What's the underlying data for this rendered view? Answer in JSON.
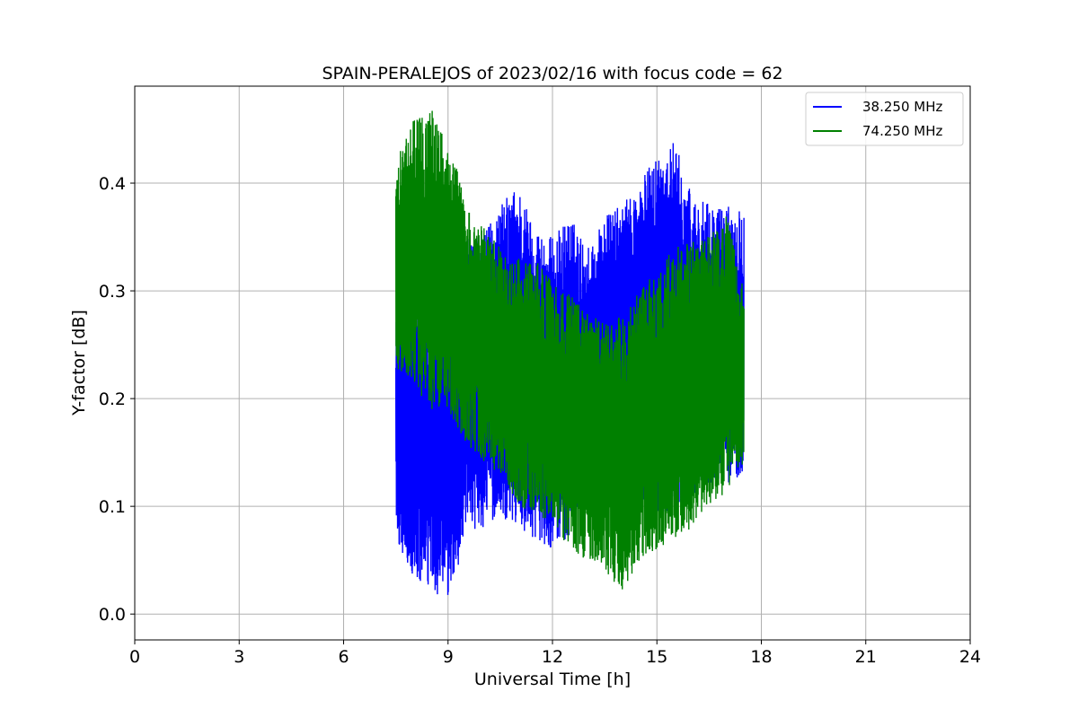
{
  "chart_data": {
    "type": "line",
    "title": "SPAIN-PERALEJOS of 2023/02/16 with focus code = 62",
    "xlabel": "Universal Time [h]",
    "ylabel": "Y-factor [dB]",
    "xlim": [
      0,
      24
    ],
    "ylim": [
      -0.024,
      0.49
    ],
    "x_ticks": [
      0,
      3,
      6,
      9,
      12,
      15,
      18,
      21,
      24
    ],
    "x_tick_labels": [
      "0",
      "3",
      "6",
      "9",
      "12",
      "15",
      "18",
      "21",
      "24"
    ],
    "y_ticks": [
      0.0,
      0.1,
      0.2,
      0.3,
      0.4
    ],
    "y_tick_labels": [
      "0.0",
      "0.1",
      "0.2",
      "0.3",
      "0.4"
    ],
    "grid": true,
    "legend_position": "top-right",
    "series": [
      {
        "name": "38.250 MHz",
        "color": "#0000ff",
        "x": [
          7.5,
          8.0,
          8.5,
          9.0,
          9.5,
          10.0,
          10.5,
          11.0,
          11.5,
          12.0,
          12.5,
          13.0,
          13.5,
          14.0,
          14.5,
          15.0,
          15.5,
          16.0,
          16.5,
          17.0,
          17.5
        ],
        "low": [
          0.07,
          0.03,
          0.02,
          0.01,
          0.07,
          0.08,
          0.09,
          0.08,
          0.07,
          0.06,
          0.07,
          0.1,
          0.12,
          0.14,
          0.08,
          0.09,
          0.1,
          0.11,
          0.12,
          0.12,
          0.13
        ],
        "high": [
          0.3,
          0.29,
          0.29,
          0.28,
          0.35,
          0.35,
          0.38,
          0.4,
          0.36,
          0.35,
          0.37,
          0.34,
          0.37,
          0.38,
          0.4,
          0.43,
          0.44,
          0.39,
          0.38,
          0.38,
          0.38
        ]
      },
      {
        "name": "74.250 MHz",
        "color": "#008000",
        "x": [
          7.5,
          8.0,
          8.5,
          9.0,
          9.5,
          10.0,
          10.5,
          11.0,
          11.5,
          12.0,
          12.5,
          13.0,
          13.5,
          14.0,
          14.5,
          15.0,
          15.5,
          16.0,
          16.5,
          17.0,
          17.5
        ],
        "low": [
          0.23,
          0.21,
          0.19,
          0.19,
          0.16,
          0.14,
          0.13,
          0.1,
          0.09,
          0.08,
          0.06,
          0.05,
          0.04,
          0.02,
          0.05,
          0.06,
          0.07,
          0.08,
          0.1,
          0.11,
          0.14
        ],
        "high": [
          0.42,
          0.46,
          0.47,
          0.45,
          0.38,
          0.36,
          0.34,
          0.33,
          0.33,
          0.31,
          0.3,
          0.28,
          0.27,
          0.28,
          0.3,
          0.32,
          0.34,
          0.35,
          0.35,
          0.37,
          0.3
        ]
      }
    ]
  }
}
